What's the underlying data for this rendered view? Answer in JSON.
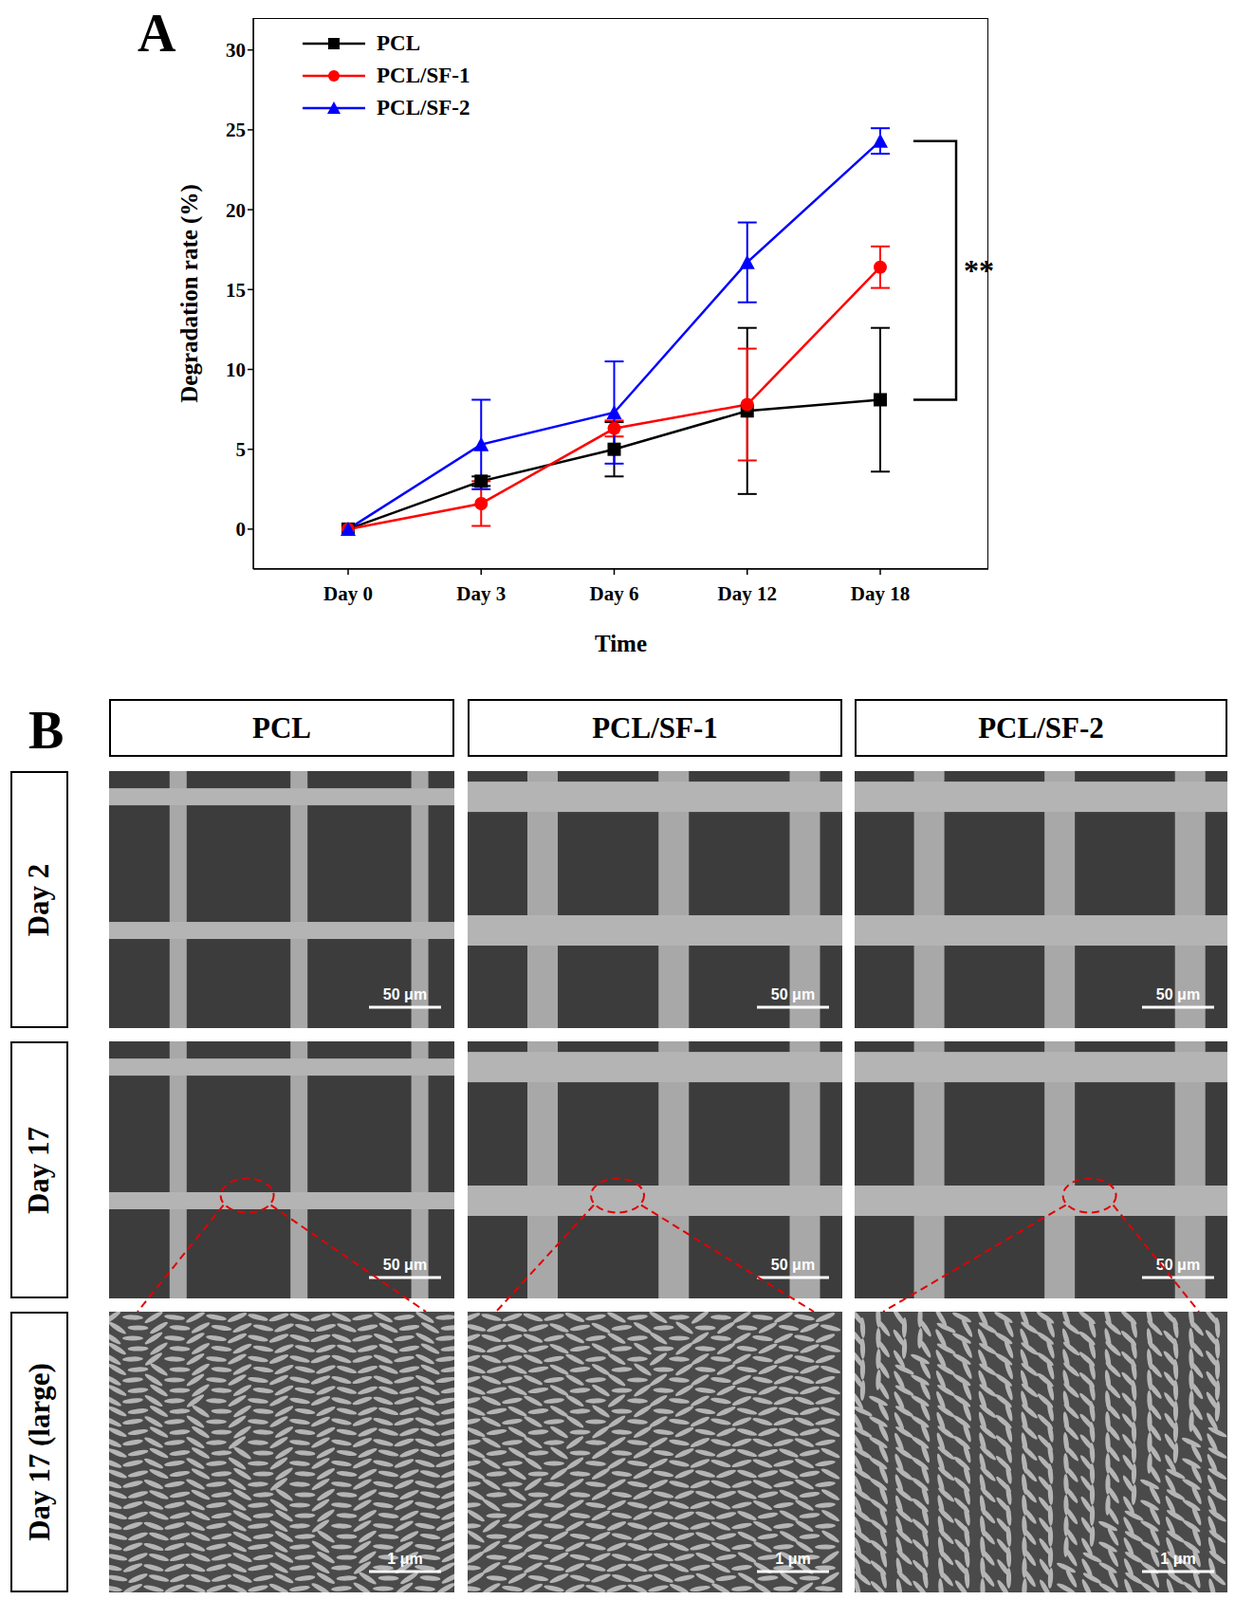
{
  "chart_data": {
    "type": "line",
    "panel_label": "A",
    "x_label": "Time",
    "y_label": "Degradation rate (%)",
    "categories": [
      "Day 0",
      "Day 3",
      "Day 6",
      "Day 12",
      "Day 18"
    ],
    "series": [
      {
        "name": "PCL",
        "color": "#000000",
        "marker": "square",
        "values": [
          0,
          3.0,
          5.0,
          7.4,
          8.1
        ],
        "errors": [
          0,
          0.3,
          1.7,
          5.2,
          4.5
        ]
      },
      {
        "name": "PCL/SF-1",
        "color": "#ff0000",
        "marker": "circle",
        "values": [
          0,
          1.6,
          6.3,
          7.8,
          16.4
        ],
        "errors": [
          0,
          1.4,
          0.5,
          3.5,
          1.3
        ]
      },
      {
        "name": "PCL/SF-2",
        "color": "#0000ff",
        "marker": "triangle",
        "values": [
          0,
          5.3,
          7.3,
          16.7,
          24.3
        ],
        "errors": [
          0,
          2.8,
          3.2,
          2.5,
          0.8
        ]
      }
    ],
    "ylim": [
      -2.5,
      32
    ],
    "yticks": [
      0,
      5,
      10,
      15,
      20,
      25,
      30
    ],
    "legend": "upper left",
    "grid": false,
    "annotations": [
      {
        "text": "**",
        "from": "PCL/SF-2",
        "to": "PCL",
        "category": "Day 18"
      }
    ]
  },
  "panel_b": {
    "label": "B",
    "columns": [
      "PCL",
      "PCL/SF-1",
      "PCL/SF-2"
    ],
    "rows": [
      {
        "label": "Day 2",
        "scale_bar": "50 μm"
      },
      {
        "label": "Day 17",
        "scale_bar": "50 μm"
      },
      {
        "label": "Day 17 (large)",
        "scale_bar": "1 μm"
      }
    ]
  }
}
